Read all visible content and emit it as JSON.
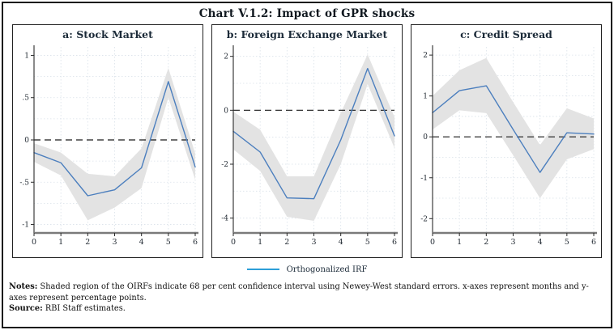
{
  "figure": {
    "title": "Chart V.1.2: Impact of GPR shocks"
  },
  "legend": {
    "label": "Orthogonalized IRF",
    "line_color": "#2d9fd8"
  },
  "notes": {
    "notes_label": "Notes:",
    "notes_text": "Shaded region of the OIRFs indicate 68 per cent confidence interval using Newey-West standard errors.  x-axes represent months and y-axes represent percentage points.",
    "source_label": "Source:",
    "source_text": "RBI Staff estimates."
  },
  "colors": {
    "irf_line": "#4c7fbe",
    "band": "#e3e3e3",
    "zero_line": "#1a1a1a",
    "grid": "#d9e1e9",
    "x_axis": "#7a7a7a",
    "y_axis": "#2a2a2a",
    "tick_label": "#1f2730"
  },
  "chart_data": {
    "type": "line",
    "x": [
      0,
      1,
      2,
      3,
      4,
      5,
      6
    ],
    "x_axis_meaning": "months",
    "y_axis_meaning": "percentage points",
    "legend_entries": [
      "Orthogonalized IRF"
    ],
    "band_meaning": "68 per cent confidence interval (Newey-West standard errors)",
    "panels": [
      {
        "id": "a",
        "title": "a: Stock Market",
        "ylim": [
          -1.1,
          1.1
        ],
        "yticks": [
          {
            "v": 1,
            "label": "1"
          },
          {
            "v": 0.5,
            "label": ".5"
          },
          {
            "v": 0,
            "label": "0"
          },
          {
            "v": -0.5,
            "label": "-.5"
          },
          {
            "v": -1,
            "label": "-1"
          }
        ],
        "irf": [
          -0.15,
          -0.27,
          -0.66,
          -0.59,
          -0.33,
          0.69,
          -0.32
        ],
        "upper": [
          -0.04,
          -0.15,
          -0.4,
          -0.43,
          -0.1,
          0.85,
          -0.16
        ],
        "lower": [
          -0.26,
          -0.42,
          -0.95,
          -0.8,
          -0.57,
          0.5,
          -0.47
        ]
      },
      {
        "id": "b",
        "title": "b: Foreign Exchange Market",
        "ylim": [
          -4.55,
          2.35
        ],
        "yticks": [
          {
            "v": 2,
            "label": "2"
          },
          {
            "v": 0,
            "label": "0"
          },
          {
            "v": -2,
            "label": "-2"
          },
          {
            "v": -4,
            "label": "-4"
          }
        ],
        "irf": [
          -0.78,
          -1.55,
          -3.25,
          -3.28,
          -1.1,
          1.55,
          -0.95
        ],
        "upper": [
          -0.05,
          -0.72,
          -2.45,
          -2.45,
          -0.1,
          2.07,
          -0.25
        ],
        "lower": [
          -1.45,
          -2.25,
          -3.95,
          -4.1,
          -2.0,
          0.97,
          -1.4
        ]
      },
      {
        "id": "c",
        "title": "c: Credit Spread",
        "ylim": [
          -2.35,
          2.2
        ],
        "yticks": [
          {
            "v": 2,
            "label": "2"
          },
          {
            "v": 1,
            "label": "1"
          },
          {
            "v": 0,
            "label": "0"
          },
          {
            "v": -1,
            "label": "-1"
          },
          {
            "v": -2,
            "label": "-2"
          }
        ],
        "irf": [
          0.59,
          1.13,
          1.25,
          0.18,
          -0.87,
          0.1,
          0.07
        ],
        "upper": [
          1.0,
          1.63,
          1.93,
          0.85,
          -0.2,
          0.7,
          0.45
        ],
        "lower": [
          0.18,
          0.65,
          0.58,
          -0.45,
          -1.5,
          -0.55,
          -0.3
        ]
      }
    ]
  }
}
